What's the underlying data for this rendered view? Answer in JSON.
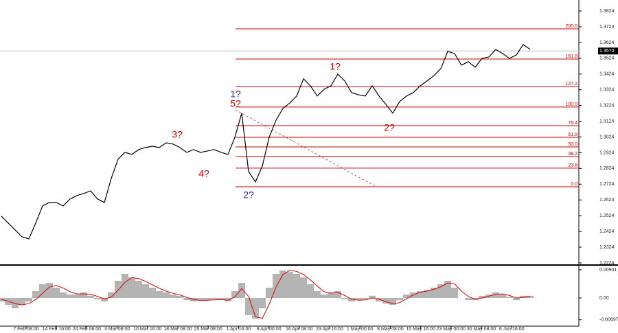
{
  "chart_data": [
    {
      "type": "line",
      "color": "#000000",
      "categories": [
        null,
        null,
        null,
        null,
        null,
        null,
        null,
        null,
        null,
        null,
        null,
        null,
        null,
        null,
        null,
        null,
        null,
        null,
        null,
        null,
        null,
        null,
        null,
        null,
        null,
        null,
        null,
        null,
        null,
        null,
        null,
        null,
        null,
        null,
        null,
        null,
        null,
        null,
        null,
        null,
        null,
        null,
        null,
        null,
        null,
        null,
        null,
        null,
        null,
        null,
        null,
        null,
        null,
        null,
        null,
        null,
        null,
        null,
        null,
        null,
        null,
        null,
        null,
        null,
        null,
        null,
        null,
        null,
        null,
        null,
        null,
        null,
        null,
        null,
        null,
        null,
        null,
        null
      ],
      "values": [
        1.2521,
        1.2477,
        1.2434,
        1.239,
        1.2377,
        1.2477,
        1.2586,
        1.2608,
        1.2608,
        1.2586,
        1.263,
        1.2652,
        1.2665,
        1.2682,
        1.263,
        1.2608,
        1.2761,
        1.2883,
        1.2926,
        1.2913,
        1.2944,
        1.2957,
        1.2965,
        1.2957,
        1.2987,
        1.2979,
        1.2957,
        1.2926,
        1.2944,
        1.2926,
        1.2935,
        1.2944,
        1.2926,
        1.2913,
        1.3022,
        1.3175,
        1.2804,
        1.2739,
        1.2839,
        1.3022,
        1.3131,
        1.3205,
        1.324,
        1.3284,
        1.3393,
        1.3349,
        1.3284,
        1.3327,
        1.3349,
        1.3423,
        1.338,
        1.3306,
        1.3292,
        1.3284,
        1.3349,
        1.3284,
        1.3231,
        1.3175,
        1.3249,
        1.3284,
        1.3306,
        1.3349,
        1.338,
        1.3414,
        1.3458,
        1.3567,
        1.3554,
        1.348,
        1.3502,
        1.3467,
        1.3523,
        1.3532,
        1.358,
        1.3554,
        1.3523,
        1.3545,
        1.3611,
        1.358
      ],
      "ylim": [
        1.2215,
        1.3894
      ],
      "yticks": [
        1.3824,
        1.3724,
        1.3624,
        1.3524,
        1.3424,
        1.3324,
        1.3224,
        1.3124,
        1.3024,
        1.2924,
        1.2824,
        1.2724,
        1.2624,
        1.2524,
        1.2424,
        1.2324,
        1.2224
      ],
      "levels_color": "#cc0000",
      "levels": [
        {
          "label": "200.0",
          "value": 1.3711
        },
        {
          "label": "161.8",
          "value": 1.3519
        },
        {
          "label": "127.2",
          "value": 1.3344
        },
        {
          "label": "100.0",
          "value": 1.3214
        },
        {
          "label": "76.4",
          "value": 1.3096
        },
        {
          "label": "61.8",
          "value": 1.3022
        },
        {
          "label": "50.0",
          "value": 1.2961
        },
        {
          "label": "38.2",
          "value": 1.29
        },
        {
          "label": "23.6",
          "value": 1.2826
        },
        {
          "label": "0.0",
          "value": 1.2708
        }
      ],
      "last_price": {
        "value": 1.357,
        "label": "1.3570"
      },
      "date_labels": [
        "7 Feb 08:00",
        "14 Feb 16:00",
        "24 Feb 08:00",
        "3 Mar 08:00",
        "10 Mar 16:00",
        "18 Mar 08:00",
        "25 Mar 08:00",
        "1 Apr 16:00",
        "9 Apr 00:00",
        "16 Apr 08:00",
        "23 Apr 16:00",
        "1 May 00:00",
        "8 May 08:00",
        "15 May 16:00",
        "23 May 00:00",
        "30 May 08:00",
        "6 Jun 16:00"
      ],
      "annotations": [
        "1?",
        "5?",
        "3?",
        "4?",
        "2?",
        "1?",
        "2?"
      ]
    },
    {
      "type": "bar",
      "color": "#b4b4b4",
      "signal_color": "#dd0000",
      "values": [
        -0.0011,
        -0.0022,
        -0.0033,
        -0.0022,
        -0.0011,
        0.0022,
        0.0044,
        0.0048,
        0.0033,
        0.0018,
        0.0011,
        0.0011,
        0.0018,
        0.0007,
        -0.0004,
        -0.0011,
        0.0018,
        0.0055,
        0.0077,
        0.0066,
        0.0055,
        0.0044,
        0.0033,
        0.0022,
        0.0018,
        0.0011,
        0.0007,
        -0.0007,
        -0.0011,
        -0.0007,
        -0.0007,
        -0.0004,
        -0.0004,
        -0.0011,
        0.0022,
        0.0048,
        -0.0055,
        -0.0066,
        -0.0033,
        0.0033,
        0.0077,
        0.0088,
        0.0083,
        0.0077,
        0.0066,
        0.0044,
        0.0022,
        0.0011,
        0.0018,
        0.0022,
        -0.0004,
        -0.0011,
        -0.0007,
        -0.0004,
        0.0007,
        -0.0011,
        -0.0018,
        -0.0022,
        -0.0007,
        0.0011,
        0.0018,
        0.0022,
        0.0026,
        0.0033,
        0.0044,
        0.0055,
        0.0033,
        0,
        -0.0007,
        -0.0007,
        0.0007,
        0.0011,
        0.0018,
        0.0011,
        0.0004,
        -0.0007,
        0.0007,
        0.0007
      ],
      "signal": [
        -0.0005,
        -0.001,
        -0.0018,
        -0.0022,
        -0.0018,
        -0.0005,
        0.0015,
        0.0035,
        0.004,
        0.0032,
        0.002,
        0.0013,
        0.0013,
        0.0012,
        0.0005,
        -0.0003,
        0.0003,
        0.0025,
        0.005,
        0.0065,
        0.0062,
        0.0053,
        0.0042,
        0.0031,
        0.0022,
        0.0015,
        0.001,
        0.0002,
        -0.0005,
        -0.0008,
        -0.0007,
        -0.0006,
        -0.0005,
        -0.0007,
        0.0003,
        0.003,
        0.0005,
        -0.006,
        -0.0065,
        -0.002,
        0.0035,
        0.0075,
        0.0088,
        0.0085,
        0.0075,
        0.0058,
        0.0038,
        0.002,
        0.0015,
        0.0018,
        0.0008,
        -0.0004,
        -0.0007,
        -0.0006,
        0.0,
        -0.0004,
        -0.0012,
        -0.0018,
        -0.0015,
        -0.0002,
        0.001,
        0.0018,
        0.0022,
        0.0028,
        0.0036,
        0.0048,
        0.0045,
        0.0022,
        0.0005,
        -0.0004,
        0.0,
        0.0006,
        0.0012,
        0.0013,
        0.0008,
        0.0,
        0.0002,
        0.0005
      ],
      "ylim": [
        -0.009,
        0.0101
      ],
      "yticks": [
        0.00901,
        {
          "value": 0,
          "label": "0.00"
        },
        -0.00697
      ]
    }
  ]
}
